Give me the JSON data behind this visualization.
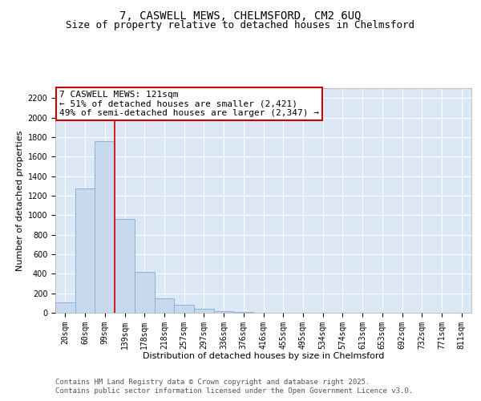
{
  "title_line1": "7, CASWELL MEWS, CHELMSFORD, CM2 6UQ",
  "title_line2": "Size of property relative to detached houses in Chelmsford",
  "xlabel": "Distribution of detached houses by size in Chelmsford",
  "ylabel": "Number of detached properties",
  "bar_labels": [
    "20sqm",
    "60sqm",
    "99sqm",
    "139sqm",
    "178sqm",
    "218sqm",
    "257sqm",
    "297sqm",
    "336sqm",
    "376sqm",
    "416sqm",
    "455sqm",
    "495sqm",
    "534sqm",
    "574sqm",
    "613sqm",
    "653sqm",
    "692sqm",
    "732sqm",
    "771sqm",
    "811sqm"
  ],
  "bar_values": [
    110,
    1275,
    1755,
    960,
    420,
    150,
    80,
    40,
    20,
    5,
    0,
    0,
    0,
    0,
    0,
    0,
    0,
    0,
    0,
    0,
    0
  ],
  "bar_color": "#c8d9ed",
  "bar_edgecolor": "#7aaed4",
  "vline_x": 2.5,
  "vline_color": "#cc0000",
  "annotation_text": "7 CASWELL MEWS: 121sqm\n← 51% of detached houses are smaller (2,421)\n49% of semi-detached houses are larger (2,347) →",
  "annotation_box_facecolor": "#ffffff",
  "annotation_box_edgecolor": "#cc0000",
  "ylim": [
    0,
    2300
  ],
  "yticks": [
    0,
    200,
    400,
    600,
    800,
    1000,
    1200,
    1400,
    1600,
    1800,
    2000,
    2200
  ],
  "background_color": "#dce8f5",
  "grid_color": "#ffffff",
  "footer_line1": "Contains HM Land Registry data © Crown copyright and database right 2025.",
  "footer_line2": "Contains public sector information licensed under the Open Government Licence v3.0.",
  "title_fontsize": 10,
  "subtitle_fontsize": 9,
  "axis_label_fontsize": 8,
  "tick_fontsize": 7,
  "annotation_fontsize": 8,
  "footer_fontsize": 6.5
}
